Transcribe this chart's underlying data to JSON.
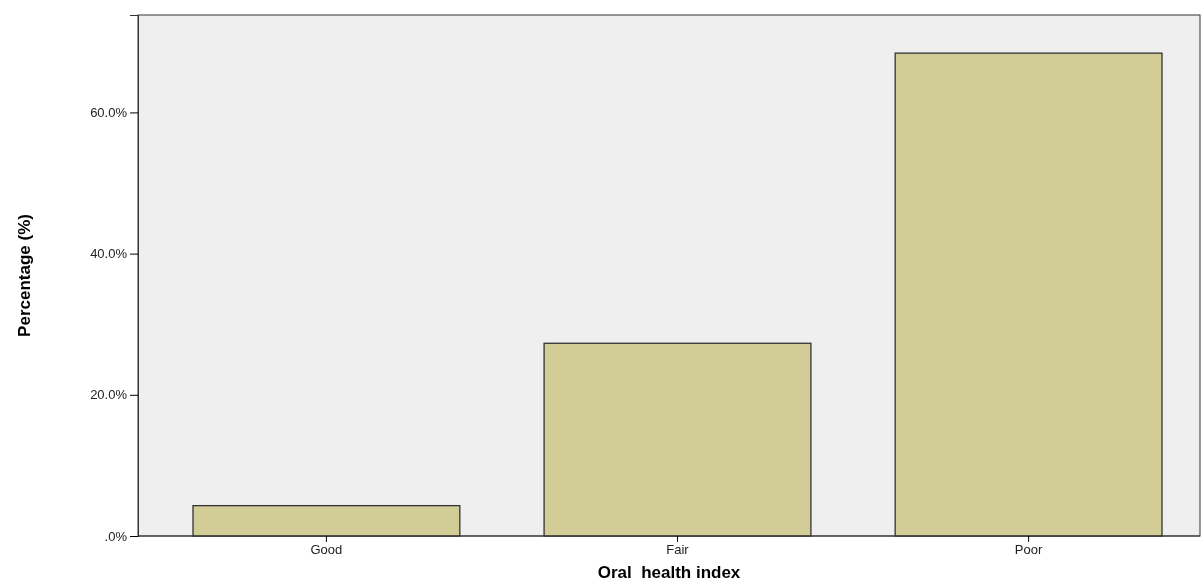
{
  "chart_data": {
    "type": "bar",
    "xlabel": "Oral  health index",
    "ylabel": "Percentage (%)",
    "categories": [
      "Good",
      "Fair",
      "Poor"
    ],
    "values": [
      4.3,
      27.3,
      68.4
    ],
    "color": "#d2cd96",
    "ylim": [
      0,
      73.8
    ],
    "yticks": [
      {
        "value": 0,
        "label": ".0%"
      },
      {
        "value": 20,
        "label": "20.0%"
      },
      {
        "value": 40,
        "label": "40.0%"
      },
      {
        "value": 60,
        "label": "60.0%"
      }
    ],
    "grid": false
  }
}
